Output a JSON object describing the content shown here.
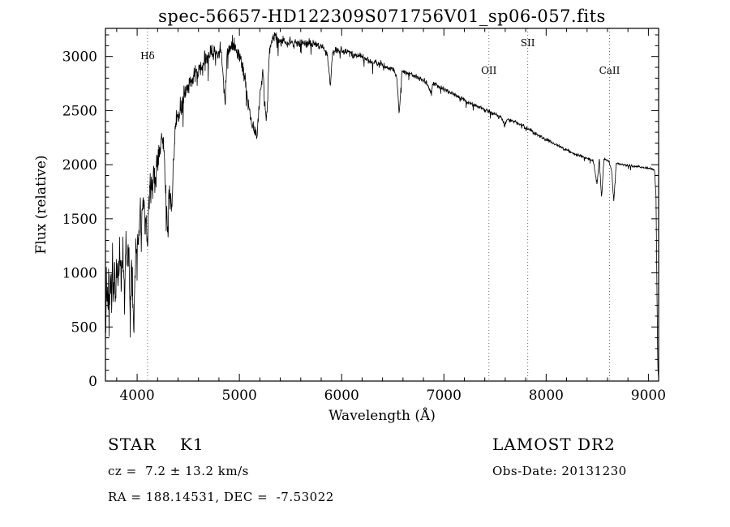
{
  "title": "spec-56657-HD122309S071756V01_sp06-057.fits",
  "footer": {
    "class_line": "STAR    K1",
    "survey_line": "LAMOST DR2",
    "cz_line": "cz =  7.2 ± 13.2 km/s",
    "obsdate_line": "Obs-Date: 20131230",
    "radec_line": "RA = 188.14531, DEC =  -7.53022"
  },
  "chart_data": {
    "type": "line",
    "title": "spec-56657-HD122309S071756V01_sp06-057.fits",
    "xlabel": "Wavelength (Å)",
    "ylabel": "Flux (relative)",
    "xlim": [
      3690,
      9100
    ],
    "ylim": [
      0,
      3260
    ],
    "xticks": [
      4000,
      5000,
      6000,
      7000,
      8000,
      9000
    ],
    "yticks": [
      0,
      500,
      1000,
      1500,
      2000,
      2500,
      3000
    ],
    "grid": false,
    "legend": "none",
    "line_color": "#000000",
    "axis_color": "#000000",
    "line_markers": [
      {
        "label": "Hδ",
        "wavelength": 4102,
        "label_level": 1
      },
      {
        "label": "OII",
        "wavelength": 7440,
        "label_level": 2
      },
      {
        "label": "SII",
        "wavelength": 7820,
        "label_level": 0
      },
      {
        "label": "CaII",
        "wavelength": 8620,
        "label_level": 2
      }
    ],
    "noise_profile": [
      [
        3690,
        190
      ],
      [
        3900,
        170
      ],
      [
        4100,
        150
      ],
      [
        4300,
        120
      ],
      [
        4600,
        85
      ],
      [
        4900,
        75
      ],
      [
        5200,
        65
      ],
      [
        5500,
        45
      ],
      [
        5800,
        40
      ],
      [
        6200,
        30
      ],
      [
        6600,
        25
      ],
      [
        7000,
        20
      ],
      [
        7600,
        18
      ],
      [
        8200,
        15
      ],
      [
        8800,
        12
      ],
      [
        9100,
        8
      ]
    ],
    "series": [
      {
        "name": "spectrum",
        "points": [
          [
            3690,
            750
          ],
          [
            3695,
            420
          ],
          [
            3700,
            980
          ],
          [
            3705,
            600
          ],
          [
            3710,
            1050
          ],
          [
            3715,
            500
          ],
          [
            3720,
            900
          ],
          [
            3725,
            380
          ],
          [
            3730,
            1000
          ],
          [
            3740,
            820
          ],
          [
            3745,
            1150
          ],
          [
            3750,
            560
          ],
          [
            3760,
            1120
          ],
          [
            3770,
            760
          ],
          [
            3780,
            1180
          ],
          [
            3790,
            520
          ],
          [
            3800,
            1120
          ],
          [
            3815,
            880
          ],
          [
            3830,
            1230
          ],
          [
            3845,
            980
          ],
          [
            3860,
            1280
          ],
          [
            3875,
            700
          ],
          [
            3890,
            1180
          ],
          [
            3905,
            1050
          ],
          [
            3920,
            1200
          ],
          [
            3933,
            520
          ],
          [
            3945,
            1050
          ],
          [
            3955,
            880
          ],
          [
            3968,
            480
          ],
          [
            3980,
            1050
          ],
          [
            4000,
            1350
          ],
          [
            4015,
            1250
          ],
          [
            4030,
            1550
          ],
          [
            4045,
            1400
          ],
          [
            4060,
            1650
          ],
          [
            4075,
            1520
          ],
          [
            4090,
            1450
          ],
          [
            4102,
            1280
          ],
          [
            4115,
            1700
          ],
          [
            4130,
            1820
          ],
          [
            4145,
            1720
          ],
          [
            4160,
            1880
          ],
          [
            4175,
            1800
          ],
          [
            4190,
            1980
          ],
          [
            4205,
            2050
          ],
          [
            4220,
            2120
          ],
          [
            4235,
            2180
          ],
          [
            4250,
            2230
          ],
          [
            4265,
            2050
          ],
          [
            4280,
            1750
          ],
          [
            4300,
            1380
          ],
          [
            4315,
            1750
          ],
          [
            4340,
            1620
          ],
          [
            4360,
            2150
          ],
          [
            4380,
            2380
          ],
          [
            4400,
            2480
          ],
          [
            4430,
            2550
          ],
          [
            4460,
            2620
          ],
          [
            4490,
            2700
          ],
          [
            4520,
            2760
          ],
          [
            4550,
            2820
          ],
          [
            4580,
            2860
          ],
          [
            4610,
            2880
          ],
          [
            4640,
            2920
          ],
          [
            4670,
            2980
          ],
          [
            4700,
            3020
          ],
          [
            4730,
            3060
          ],
          [
            4760,
            3050
          ],
          [
            4790,
            3010
          ],
          [
            4820,
            3060
          ],
          [
            4861,
            2580
          ],
          [
            4880,
            3040
          ],
          [
            4910,
            3090
          ],
          [
            4940,
            3110
          ],
          [
            4970,
            3060
          ],
          [
            5000,
            3000
          ],
          [
            5030,
            2920
          ],
          [
            5060,
            2750
          ],
          [
            5090,
            2520
          ],
          [
            5120,
            2380
          ],
          [
            5150,
            2300
          ],
          [
            5175,
            2280
          ],
          [
            5200,
            2620
          ],
          [
            5230,
            2870
          ],
          [
            5255,
            2500
          ],
          [
            5270,
            2450
          ],
          [
            5290,
            3050
          ],
          [
            5320,
            3150
          ],
          [
            5350,
            3180
          ],
          [
            5380,
            3140
          ],
          [
            5410,
            3120
          ],
          [
            5440,
            3150
          ],
          [
            5470,
            3110
          ],
          [
            5500,
            3140
          ],
          [
            5530,
            3100
          ],
          [
            5560,
            3140
          ],
          [
            5590,
            3110
          ],
          [
            5620,
            3140
          ],
          [
            5650,
            3100
          ],
          [
            5680,
            3130
          ],
          [
            5710,
            3110
          ],
          [
            5740,
            3120
          ],
          [
            5770,
            3090
          ],
          [
            5800,
            3100
          ],
          [
            5830,
            3060
          ],
          [
            5860,
            3020
          ],
          [
            5890,
            2720
          ],
          [
            5910,
            3020
          ],
          [
            5940,
            3060
          ],
          [
            5970,
            3050
          ],
          [
            6000,
            3060
          ],
          [
            6030,
            3040
          ],
          [
            6060,
            3050
          ],
          [
            6090,
            3020
          ],
          [
            6120,
            3010
          ],
          [
            6150,
            3000
          ],
          [
            6180,
            3010
          ],
          [
            6210,
            2990
          ],
          [
            6240,
            2980
          ],
          [
            6270,
            2960
          ],
          [
            6300,
            2940
          ],
          [
            6330,
            2950
          ],
          [
            6360,
            2930
          ],
          [
            6390,
            2930
          ],
          [
            6420,
            2910
          ],
          [
            6450,
            2900
          ],
          [
            6480,
            2890
          ],
          [
            6510,
            2880
          ],
          [
            6540,
            2800
          ],
          [
            6563,
            2460
          ],
          [
            6590,
            2860
          ],
          [
            6620,
            2850
          ],
          [
            6650,
            2840
          ],
          [
            6680,
            2830
          ],
          [
            6710,
            2820
          ],
          [
            6740,
            2810
          ],
          [
            6770,
            2790
          ],
          [
            6800,
            2780
          ],
          [
            6830,
            2760
          ],
          [
            6867,
            2680
          ],
          [
            6900,
            2750
          ],
          [
            6930,
            2740
          ],
          [
            6960,
            2720
          ],
          [
            6990,
            2700
          ],
          [
            7020,
            2690
          ],
          [
            7050,
            2670
          ],
          [
            7080,
            2660
          ],
          [
            7110,
            2640
          ],
          [
            7140,
            2630
          ],
          [
            7170,
            2610
          ],
          [
            7200,
            2600
          ],
          [
            7230,
            2580
          ],
          [
            7260,
            2570
          ],
          [
            7290,
            2550
          ],
          [
            7320,
            2540
          ],
          [
            7350,
            2530
          ],
          [
            7380,
            2520
          ],
          [
            7410,
            2500
          ],
          [
            7440,
            2490
          ],
          [
            7470,
            2480
          ],
          [
            7500,
            2470
          ],
          [
            7530,
            2450
          ],
          [
            7560,
            2440
          ],
          [
            7594,
            2360
          ],
          [
            7620,
            2420
          ],
          [
            7650,
            2410
          ],
          [
            7680,
            2400
          ],
          [
            7710,
            2390
          ],
          [
            7740,
            2370
          ],
          [
            7770,
            2360
          ],
          [
            7800,
            2340
          ],
          [
            7830,
            2330
          ],
          [
            7860,
            2310
          ],
          [
            7890,
            2290
          ],
          [
            7920,
            2270
          ],
          [
            7950,
            2260
          ],
          [
            7980,
            2240
          ],
          [
            8010,
            2230
          ],
          [
            8040,
            2210
          ],
          [
            8070,
            2200
          ],
          [
            8100,
            2180
          ],
          [
            8130,
            2170
          ],
          [
            8160,
            2150
          ],
          [
            8190,
            2140
          ],
          [
            8220,
            2130
          ],
          [
            8250,
            2110
          ],
          [
            8280,
            2100
          ],
          [
            8310,
            2090
          ],
          [
            8340,
            2080
          ],
          [
            8370,
            2070
          ],
          [
            8400,
            2060
          ],
          [
            8430,
            2050
          ],
          [
            8460,
            2040
          ],
          [
            8498,
            1820
          ],
          [
            8520,
            2060
          ],
          [
            8542,
            1680
          ],
          [
            8565,
            2050
          ],
          [
            8590,
            2040
          ],
          [
            8615,
            2030
          ],
          [
            8640,
            1950
          ],
          [
            8662,
            1660
          ],
          [
            8685,
            2010
          ],
          [
            8710,
            2010
          ],
          [
            8740,
            2000
          ],
          [
            8770,
            2000
          ],
          [
            8800,
            1990
          ],
          [
            8830,
            1990
          ],
          [
            8860,
            1985
          ],
          [
            8890,
            1985
          ],
          [
            8920,
            1980
          ],
          [
            8950,
            1975
          ],
          [
            8980,
            1970
          ],
          [
            9010,
            1965
          ],
          [
            9040,
            1960
          ],
          [
            9060,
            1950
          ],
          [
            9075,
            1700
          ],
          [
            9085,
            700
          ],
          [
            9092,
            150
          ],
          [
            9100,
            20
          ]
        ]
      }
    ]
  }
}
